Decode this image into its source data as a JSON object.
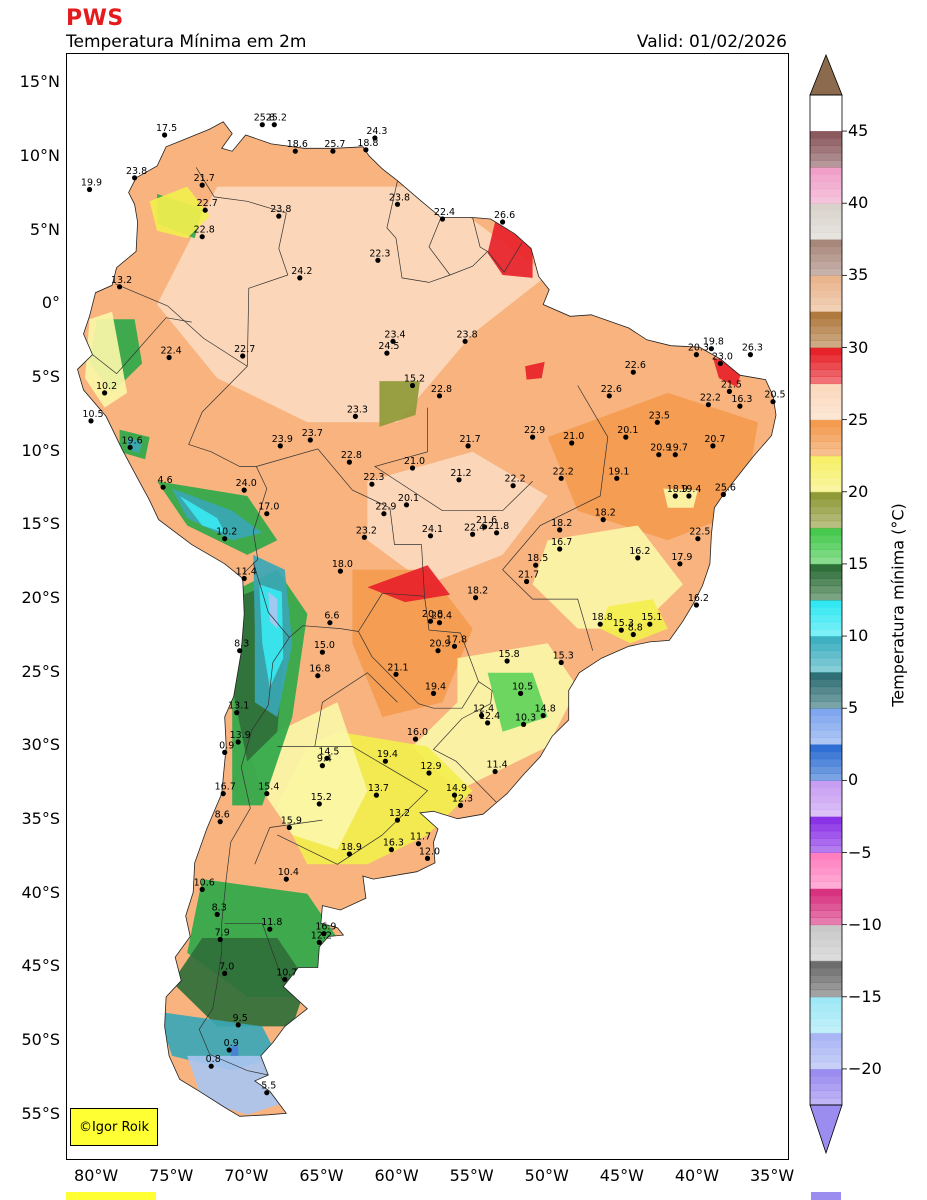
{
  "header": {
    "brand": "PWS",
    "title": "Temperatura Mínima em 2m",
    "valid": "Valid: 01/02/2026"
  },
  "credit": "©Igor Roik",
  "colorbar": {
    "label": "Temperatura mínima (°C)",
    "ticks": [
      "45",
      "40",
      "35",
      "30",
      "25",
      "20",
      "15",
      "10",
      "5",
      "0",
      "−5",
      "−10",
      "−15",
      "−20"
    ],
    "range": [
      -22.5,
      47.5
    ]
  },
  "axes": {
    "lat_labels": [
      "15°N",
      "10°N",
      "5°N",
      "0°",
      "5°S",
      "10°S",
      "15°S",
      "20°S",
      "25°S",
      "30°S",
      "35°S",
      "40°S",
      "45°S",
      "50°S",
      "55°S"
    ],
    "lon_labels": [
      "80°W",
      "75°W",
      "70°W",
      "65°W",
      "60°W",
      "55°W",
      "50°W",
      "45°W",
      "40°W",
      "35°W"
    ],
    "lat_range": [
      -58,
      17
    ],
    "lon_range": [
      -82,
      -34
    ]
  },
  "colors": {
    "ocean": "#ffffff",
    "warm_light": "#fbd9bd",
    "warm": "#f8b37e",
    "orange": "#f39b4f",
    "hot": "#e7222a",
    "olive": "#8f9a38",
    "yellow_light": "#fbf6a8",
    "yellow": "#f2ef4e",
    "green_light": "#61d45a",
    "green": "#2fa84a",
    "green_dark": "#2f6f3a",
    "cyan": "#39e8f0",
    "teal": "#3aa7b5",
    "blue_light": "#a9c6f0",
    "blue": "#4a7fd9",
    "border": "#333333"
  },
  "stations": [
    {
      "v": "17.5",
      "lon": -75.5,
      "lat": 11.5
    },
    {
      "v": "25.8",
      "lon": -69.0,
      "lat": 12.2
    },
    {
      "v": "25.2",
      "lon": -68.2,
      "lat": 12.2
    },
    {
      "v": "18.6",
      "lon": -66.8,
      "lat": 10.4
    },
    {
      "v": "25.7",
      "lon": -64.3,
      "lat": 10.4
    },
    {
      "v": "24.3",
      "lon": -61.5,
      "lat": 11.3
    },
    {
      "v": "18.8",
      "lon": -62.1,
      "lat": 10.5
    },
    {
      "v": "19.9",
      "lon": -80.5,
      "lat": 7.8
    },
    {
      "v": "23.8",
      "lon": -77.5,
      "lat": 8.6
    },
    {
      "v": "21.7",
      "lon": -73.0,
      "lat": 8.1
    },
    {
      "v": "22.7",
      "lon": -72.8,
      "lat": 6.4
    },
    {
      "v": "23.8",
      "lon": -67.9,
      "lat": 6.0
    },
    {
      "v": "23.8",
      "lon": -60.0,
      "lat": 6.8
    },
    {
      "v": "22.4",
      "lon": -57.0,
      "lat": 5.8
    },
    {
      "v": "26.6",
      "lon": -53.0,
      "lat": 5.6
    },
    {
      "v": "22.8",
      "lon": -73.0,
      "lat": 4.6
    },
    {
      "v": "22.3",
      "lon": -61.3,
      "lat": 3.0
    },
    {
      "v": "24.2",
      "lon": -66.5,
      "lat": 1.8
    },
    {
      "v": "13.2",
      "lon": -78.5,
      "lat": 1.2
    },
    {
      "v": "23.4",
      "lon": -60.3,
      "lat": -2.5
    },
    {
      "v": "24.5",
      "lon": -60.7,
      "lat": -3.3
    },
    {
      "v": "23.8",
      "lon": -55.5,
      "lat": -2.5
    },
    {
      "v": "22.4",
      "lon": -75.2,
      "lat": -3.6
    },
    {
      "v": "22.7",
      "lon": -70.3,
      "lat": -3.5
    },
    {
      "v": "20.3",
      "lon": -40.1,
      "lat": -3.4
    },
    {
      "v": "19.8",
      "lon": -39.1,
      "lat": -3.0
    },
    {
      "v": "23.0",
      "lon": -38.5,
      "lat": -4.0
    },
    {
      "v": "26.3",
      "lon": -36.5,
      "lat": -3.4
    },
    {
      "v": "22.6",
      "lon": -44.3,
      "lat": -4.6
    },
    {
      "v": "15.2",
      "lon": -59.0,
      "lat": -5.5
    },
    {
      "v": "22.8",
      "lon": -57.2,
      "lat": -6.2
    },
    {
      "v": "22.6",
      "lon": -45.9,
      "lat": -6.2
    },
    {
      "v": "10.2",
      "lon": -79.5,
      "lat": -6.0
    },
    {
      "v": "21.5",
      "lon": -37.9,
      "lat": -5.9
    },
    {
      "v": "22.2",
      "lon": -39.3,
      "lat": -6.8
    },
    {
      "v": "16.3",
      "lon": -37.2,
      "lat": -6.9
    },
    {
      "v": "20.5",
      "lon": -35.0,
      "lat": -6.6
    },
    {
      "v": "23.3",
      "lon": -62.8,
      "lat": -7.6
    },
    {
      "v": "23.5",
      "lon": -42.7,
      "lat": -8.0
    },
    {
      "v": "10.5",
      "lon": -80.4,
      "lat": -7.9
    },
    {
      "v": "22.9",
      "lon": -51.0,
      "lat": -9.0
    },
    {
      "v": "20.1",
      "lon": -44.8,
      "lat": -9.0
    },
    {
      "v": "23.9",
      "lon": -67.8,
      "lat": -9.6
    },
    {
      "v": "23.7",
      "lon": -65.8,
      "lat": -9.2
    },
    {
      "v": "21.7",
      "lon": -55.3,
      "lat": -9.6
    },
    {
      "v": "21.0",
      "lon": -48.4,
      "lat": -9.4
    },
    {
      "v": "20.7",
      "lon": -39.0,
      "lat": -9.6
    },
    {
      "v": "19.6",
      "lon": -77.8,
      "lat": -9.7
    },
    {
      "v": "20.9",
      "lon": -42.6,
      "lat": -10.2
    },
    {
      "v": "19.7",
      "lon": -41.5,
      "lat": -10.2
    },
    {
      "v": "22.8",
      "lon": -63.2,
      "lat": -10.7
    },
    {
      "v": "21.0",
      "lon": -59.0,
      "lat": -11.1
    },
    {
      "v": "22.2",
      "lon": -49.1,
      "lat": -11.8
    },
    {
      "v": "21.2",
      "lon": -55.9,
      "lat": -11.9
    },
    {
      "v": "19.1",
      "lon": -45.4,
      "lat": -11.8
    },
    {
      "v": "22.3",
      "lon": -61.7,
      "lat": -12.2
    },
    {
      "v": "22.2",
      "lon": -52.3,
      "lat": -12.3
    },
    {
      "v": "4.6",
      "lon": -75.6,
      "lat": -12.4
    },
    {
      "v": "24.0",
      "lon": -70.2,
      "lat": -12.6
    },
    {
      "v": "18.9",
      "lon": -41.5,
      "lat": -13.0
    },
    {
      "v": "19.4",
      "lon": -40.6,
      "lat": -13.0
    },
    {
      "v": "25.6",
      "lon": -38.3,
      "lat": -12.9
    },
    {
      "v": "20.1",
      "lon": -59.4,
      "lat": -13.6
    },
    {
      "v": "22.9",
      "lon": -60.9,
      "lat": -14.2
    },
    {
      "v": "17.0",
      "lon": -68.7,
      "lat": -14.2
    },
    {
      "v": "18.2",
      "lon": -46.3,
      "lat": -14.6
    },
    {
      "v": "18.2",
      "lon": -49.2,
      "lat": -15.3
    },
    {
      "v": "21.6",
      "lon": -54.2,
      "lat": -15.1
    },
    {
      "v": "21.8",
      "lon": -53.4,
      "lat": -15.5
    },
    {
      "v": "22.4",
      "lon": -55.0,
      "lat": -15.6
    },
    {
      "v": "24.1",
      "lon": -57.8,
      "lat": -15.7
    },
    {
      "v": "23.2",
      "lon": -62.2,
      "lat": -15.8
    },
    {
      "v": "22.5",
      "lon": -40.0,
      "lat": -15.9
    },
    {
      "v": "16.7",
      "lon": -49.2,
      "lat": -16.6
    },
    {
      "v": "10.2",
      "lon": -71.5,
      "lat": -15.9
    },
    {
      "v": "16.2",
      "lon": -44.0,
      "lat": -17.2
    },
    {
      "v": "17.9",
      "lon": -41.2,
      "lat": -17.6
    },
    {
      "v": "18.5",
      "lon": -50.8,
      "lat": -17.7
    },
    {
      "v": "18.0",
      "lon": -63.8,
      "lat": -18.1
    },
    {
      "v": "21.7",
      "lon": -51.4,
      "lat": -18.8
    },
    {
      "v": "11.4",
      "lon": -70.2,
      "lat": -18.6
    },
    {
      "v": "18.2",
      "lon": -54.8,
      "lat": -19.9
    },
    {
      "v": "16.2",
      "lon": -40.1,
      "lat": -20.4
    },
    {
      "v": "20.8",
      "lon": -57.8,
      "lat": -21.5
    },
    {
      "v": "20.4",
      "lon": -57.2,
      "lat": -21.6
    },
    {
      "v": "18.8",
      "lon": -46.5,
      "lat": -21.7
    },
    {
      "v": "15.3",
      "lon": -45.1,
      "lat": -22.1
    },
    {
      "v": "15.1",
      "lon": -43.2,
      "lat": -21.7
    },
    {
      "v": "8.8",
      "lon": -44.3,
      "lat": -22.4
    },
    {
      "v": "6.6",
      "lon": -64.5,
      "lat": -21.6
    },
    {
      "v": "8.3",
      "lon": -70.5,
      "lat": -23.5
    },
    {
      "v": "15.0",
      "lon": -65.0,
      "lat": -23.6
    },
    {
      "v": "17.8",
      "lon": -56.2,
      "lat": -23.2
    },
    {
      "v": "20.9",
      "lon": -57.3,
      "lat": -23.5
    },
    {
      "v": "15.8",
      "lon": -52.7,
      "lat": -24.2
    },
    {
      "v": "15.3",
      "lon": -49.1,
      "lat": -24.3
    },
    {
      "v": "16.8",
      "lon": -65.3,
      "lat": -25.2
    },
    {
      "v": "21.1",
      "lon": -60.1,
      "lat": -25.1
    },
    {
      "v": "10.5",
      "lon": -51.8,
      "lat": -26.4
    },
    {
      "v": "19.4",
      "lon": -57.6,
      "lat": -26.4
    },
    {
      "v": "13.1",
      "lon": -70.7,
      "lat": -27.7
    },
    {
      "v": "12.4",
      "lon": -54.4,
      "lat": -27.9
    },
    {
      "v": "12.4",
      "lon": -54.0,
      "lat": -28.4
    },
    {
      "v": "10.3",
      "lon": -51.6,
      "lat": -28.5
    },
    {
      "v": "14.8",
      "lon": -50.3,
      "lat": -27.9
    },
    {
      "v": "13.9",
      "lon": -70.6,
      "lat": -29.7
    },
    {
      "v": "16.0",
      "lon": -58.8,
      "lat": -29.5
    },
    {
      "v": "0.9",
      "lon": -71.5,
      "lat": -30.4
    },
    {
      "v": "14.5",
      "lon": -64.7,
      "lat": -30.8
    },
    {
      "v": "9.4",
      "lon": -65.0,
      "lat": -31.3
    },
    {
      "v": "19.4",
      "lon": -60.8,
      "lat": -31.0
    },
    {
      "v": "11.4",
      "lon": -53.5,
      "lat": -31.7
    },
    {
      "v": "12.9",
      "lon": -57.9,
      "lat": -31.8
    },
    {
      "v": "16.7",
      "lon": -71.6,
      "lat": -33.2
    },
    {
      "v": "15.4",
      "lon": -68.7,
      "lat": -33.2
    },
    {
      "v": "13.7",
      "lon": -61.4,
      "lat": -33.3
    },
    {
      "v": "14.9",
      "lon": -56.2,
      "lat": -33.3
    },
    {
      "v": "15.2",
      "lon": -65.2,
      "lat": -33.9
    },
    {
      "v": "12.3",
      "lon": -55.8,
      "lat": -34.0
    },
    {
      "v": "8.6",
      "lon": -71.8,
      "lat": -35.1
    },
    {
      "v": "13.2",
      "lon": -60.0,
      "lat": -35.0
    },
    {
      "v": "15.9",
      "lon": -67.2,
      "lat": -35.5
    },
    {
      "v": "16.3",
      "lon": -60.4,
      "lat": -37.0
    },
    {
      "v": "18.9",
      "lon": -63.2,
      "lat": -37.3
    },
    {
      "v": "11.7",
      "lon": -58.6,
      "lat": -36.6
    },
    {
      "v": "12.0",
      "lon": -58.0,
      "lat": -37.6
    },
    {
      "v": "10.4",
      "lon": -67.4,
      "lat": -39.0
    },
    {
      "v": "10.6",
      "lon": -73.0,
      "lat": -39.7
    },
    {
      "v": "11.8",
      "lon": -68.5,
      "lat": -42.4
    },
    {
      "v": "8.3",
      "lon": -72.0,
      "lat": -41.4
    },
    {
      "v": "7.9",
      "lon": -71.8,
      "lat": -43.1
    },
    {
      "v": "12.2",
      "lon": -65.2,
      "lat": -43.3
    },
    {
      "v": "16.9",
      "lon": -64.9,
      "lat": -42.7
    },
    {
      "v": "7.0",
      "lon": -71.5,
      "lat": -45.4
    },
    {
      "v": "10.7",
      "lon": -67.5,
      "lat": -45.8
    },
    {
      "v": "9.5",
      "lon": -70.6,
      "lat": -48.9
    },
    {
      "v": "0.9",
      "lon": -71.2,
      "lat": -50.6
    },
    {
      "v": "0.8",
      "lon": -72.4,
      "lat": -51.7
    },
    {
      "v": "5.5",
      "lon": -68.7,
      "lat": -53.5
    }
  ]
}
